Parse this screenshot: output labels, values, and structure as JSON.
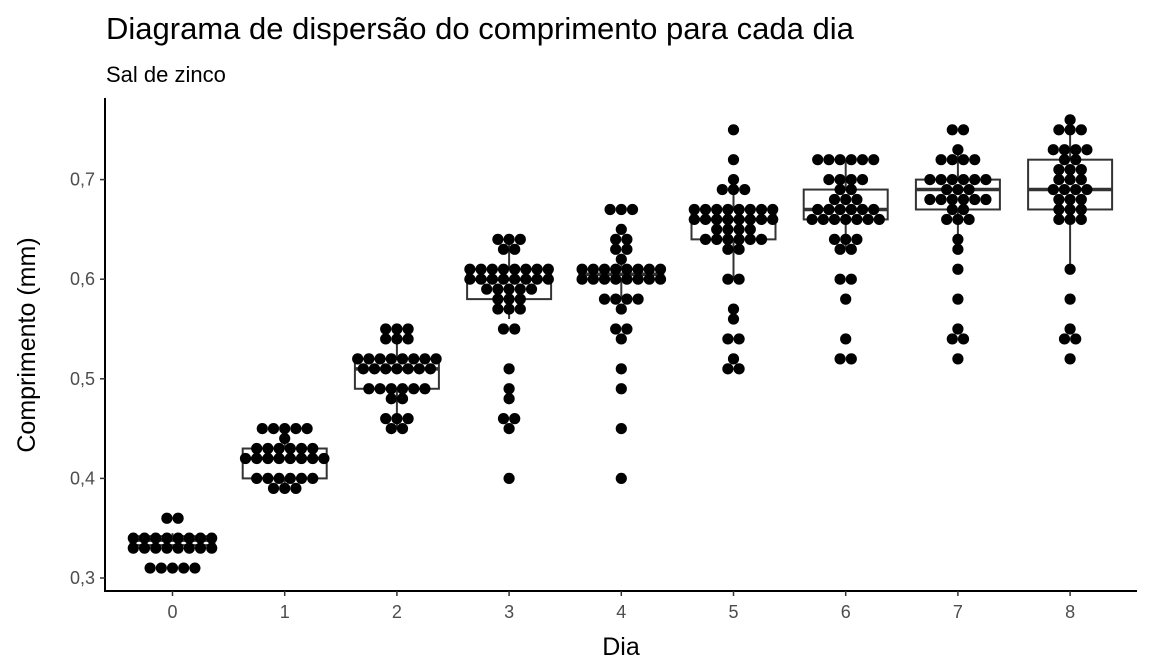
{
  "chart_data": {
    "type": "scatter",
    "overlay": "boxplot",
    "title": "Diagrama de dispersão do comprimento para cada dia",
    "subtitle": "Sal de zinco",
    "xlabel": "Dia",
    "ylabel": "Comprimento (mm)",
    "ylim": [
      0.29,
      0.78
    ],
    "xticks": [
      "0",
      "1",
      "2",
      "3",
      "4",
      "5",
      "6",
      "7",
      "8"
    ],
    "yticks": [
      {
        "value": 0.3,
        "label": "0,3"
      },
      {
        "value": 0.4,
        "label": "0,4"
      },
      {
        "value": 0.5,
        "label": "0,5"
      },
      {
        "value": 0.6,
        "label": "0,6"
      },
      {
        "value": 0.7,
        "label": "0,7"
      }
    ],
    "grid": false,
    "point_color": "#000000",
    "box_color": "#333333",
    "groups": [
      {
        "day": 0,
        "values": [
          0.36,
          0.36,
          0.34,
          0.34,
          0.34,
          0.34,
          0.34,
          0.34,
          0.34,
          0.34,
          0.33,
          0.33,
          0.33,
          0.33,
          0.33,
          0.33,
          0.33,
          0.33,
          0.31,
          0.31,
          0.31,
          0.31,
          0.31
        ],
        "box": {
          "q1": 0.333,
          "median": 0.338,
          "q3": 0.342,
          "lower": 0.33,
          "upper": 0.345
        }
      },
      {
        "day": 1,
        "values": [
          0.45,
          0.45,
          0.45,
          0.45,
          0.45,
          0.44,
          0.43,
          0.43,
          0.43,
          0.43,
          0.43,
          0.43,
          0.42,
          0.42,
          0.42,
          0.42,
          0.42,
          0.42,
          0.42,
          0.42,
          0.4,
          0.4,
          0.4,
          0.4,
          0.4,
          0.4,
          0.39,
          0.39,
          0.39
        ],
        "box": {
          "q1": 0.4,
          "median": 0.42,
          "q3": 0.43,
          "lower": 0.39,
          "upper": 0.44
        }
      },
      {
        "day": 2,
        "values": [
          0.55,
          0.55,
          0.55,
          0.54,
          0.54,
          0.54,
          0.52,
          0.52,
          0.52,
          0.52,
          0.52,
          0.52,
          0.52,
          0.52,
          0.51,
          0.51,
          0.51,
          0.51,
          0.51,
          0.51,
          0.51,
          0.49,
          0.49,
          0.49,
          0.49,
          0.49,
          0.49,
          0.48,
          0.48,
          0.46,
          0.46,
          0.46,
          0.45,
          0.45
        ],
        "box": {
          "q1": 0.49,
          "median": 0.51,
          "q3": 0.52,
          "lower": 0.45,
          "upper": 0.54
        }
      },
      {
        "day": 3,
        "values": [
          0.64,
          0.64,
          0.64,
          0.63,
          0.63,
          0.61,
          0.61,
          0.61,
          0.61,
          0.61,
          0.61,
          0.61,
          0.61,
          0.6,
          0.6,
          0.6,
          0.6,
          0.6,
          0.6,
          0.6,
          0.6,
          0.59,
          0.59,
          0.59,
          0.59,
          0.59,
          0.58,
          0.58,
          0.58,
          0.57,
          0.57,
          0.57,
          0.55,
          0.55,
          0.51,
          0.49,
          0.48,
          0.46,
          0.46,
          0.45,
          0.4
        ],
        "box": {
          "q1": 0.58,
          "median": 0.6,
          "q3": 0.61,
          "lower": 0.56,
          "upper": 0.64
        }
      },
      {
        "day": 4,
        "values": [
          0.67,
          0.67,
          0.67,
          0.65,
          0.64,
          0.64,
          0.63,
          0.63,
          0.62,
          0.61,
          0.61,
          0.61,
          0.61,
          0.61,
          0.61,
          0.61,
          0.61,
          0.6,
          0.6,
          0.6,
          0.6,
          0.6,
          0.6,
          0.6,
          0.6,
          0.58,
          0.58,
          0.58,
          0.58,
          0.57,
          0.55,
          0.55,
          0.54,
          0.51,
          0.49,
          0.45,
          0.4
        ],
        "box": {
          "q1": 0.6,
          "median": 0.605,
          "q3": 0.61,
          "lower": 0.58,
          "upper": 0.62
        }
      },
      {
        "day": 5,
        "values": [
          0.75,
          0.72,
          0.7,
          0.69,
          0.69,
          0.69,
          0.67,
          0.67,
          0.67,
          0.67,
          0.67,
          0.67,
          0.67,
          0.67,
          0.66,
          0.66,
          0.66,
          0.66,
          0.66,
          0.66,
          0.66,
          0.66,
          0.65,
          0.65,
          0.65,
          0.65,
          0.64,
          0.64,
          0.64,
          0.64,
          0.64,
          0.64,
          0.63,
          0.63,
          0.6,
          0.6,
          0.57,
          0.56,
          0.54,
          0.54,
          0.52,
          0.51,
          0.51
        ],
        "box": {
          "q1": 0.64,
          "median": 0.66,
          "q3": 0.67,
          "lower": 0.6,
          "upper": 0.7
        }
      },
      {
        "day": 6,
        "values": [
          0.72,
          0.72,
          0.72,
          0.72,
          0.72,
          0.72,
          0.7,
          0.7,
          0.7,
          0.7,
          0.69,
          0.69,
          0.68,
          0.68,
          0.68,
          0.67,
          0.67,
          0.67,
          0.67,
          0.67,
          0.67,
          0.66,
          0.66,
          0.66,
          0.66,
          0.66,
          0.66,
          0.66,
          0.64,
          0.64,
          0.64,
          0.63,
          0.63,
          0.6,
          0.6,
          0.58,
          0.54,
          0.52,
          0.52
        ],
        "box": {
          "q1": 0.66,
          "median": 0.67,
          "q3": 0.69,
          "lower": 0.63,
          "upper": 0.72
        }
      },
      {
        "day": 7,
        "values": [
          0.75,
          0.75,
          0.73,
          0.72,
          0.72,
          0.72,
          0.72,
          0.7,
          0.7,
          0.7,
          0.7,
          0.7,
          0.7,
          0.69,
          0.69,
          0.69,
          0.68,
          0.68,
          0.68,
          0.68,
          0.68,
          0.68,
          0.67,
          0.67,
          0.66,
          0.66,
          0.66,
          0.64,
          0.63,
          0.61,
          0.58,
          0.55,
          0.54,
          0.54,
          0.52
        ],
        "box": {
          "q1": 0.67,
          "median": 0.69,
          "q3": 0.7,
          "lower": 0.63,
          "upper": 0.73
        }
      },
      {
        "day": 8,
        "values": [
          0.76,
          0.75,
          0.75,
          0.75,
          0.73,
          0.73,
          0.73,
          0.73,
          0.72,
          0.72,
          0.71,
          0.71,
          0.71,
          0.7,
          0.7,
          0.7,
          0.69,
          0.69,
          0.69,
          0.69,
          0.68,
          0.68,
          0.68,
          0.67,
          0.67,
          0.67,
          0.66,
          0.66,
          0.66,
          0.61,
          0.58,
          0.55,
          0.54,
          0.54,
          0.52
        ],
        "box": {
          "q1": 0.67,
          "median": 0.69,
          "q3": 0.72,
          "lower": 0.61,
          "upper": 0.76
        }
      }
    ]
  }
}
